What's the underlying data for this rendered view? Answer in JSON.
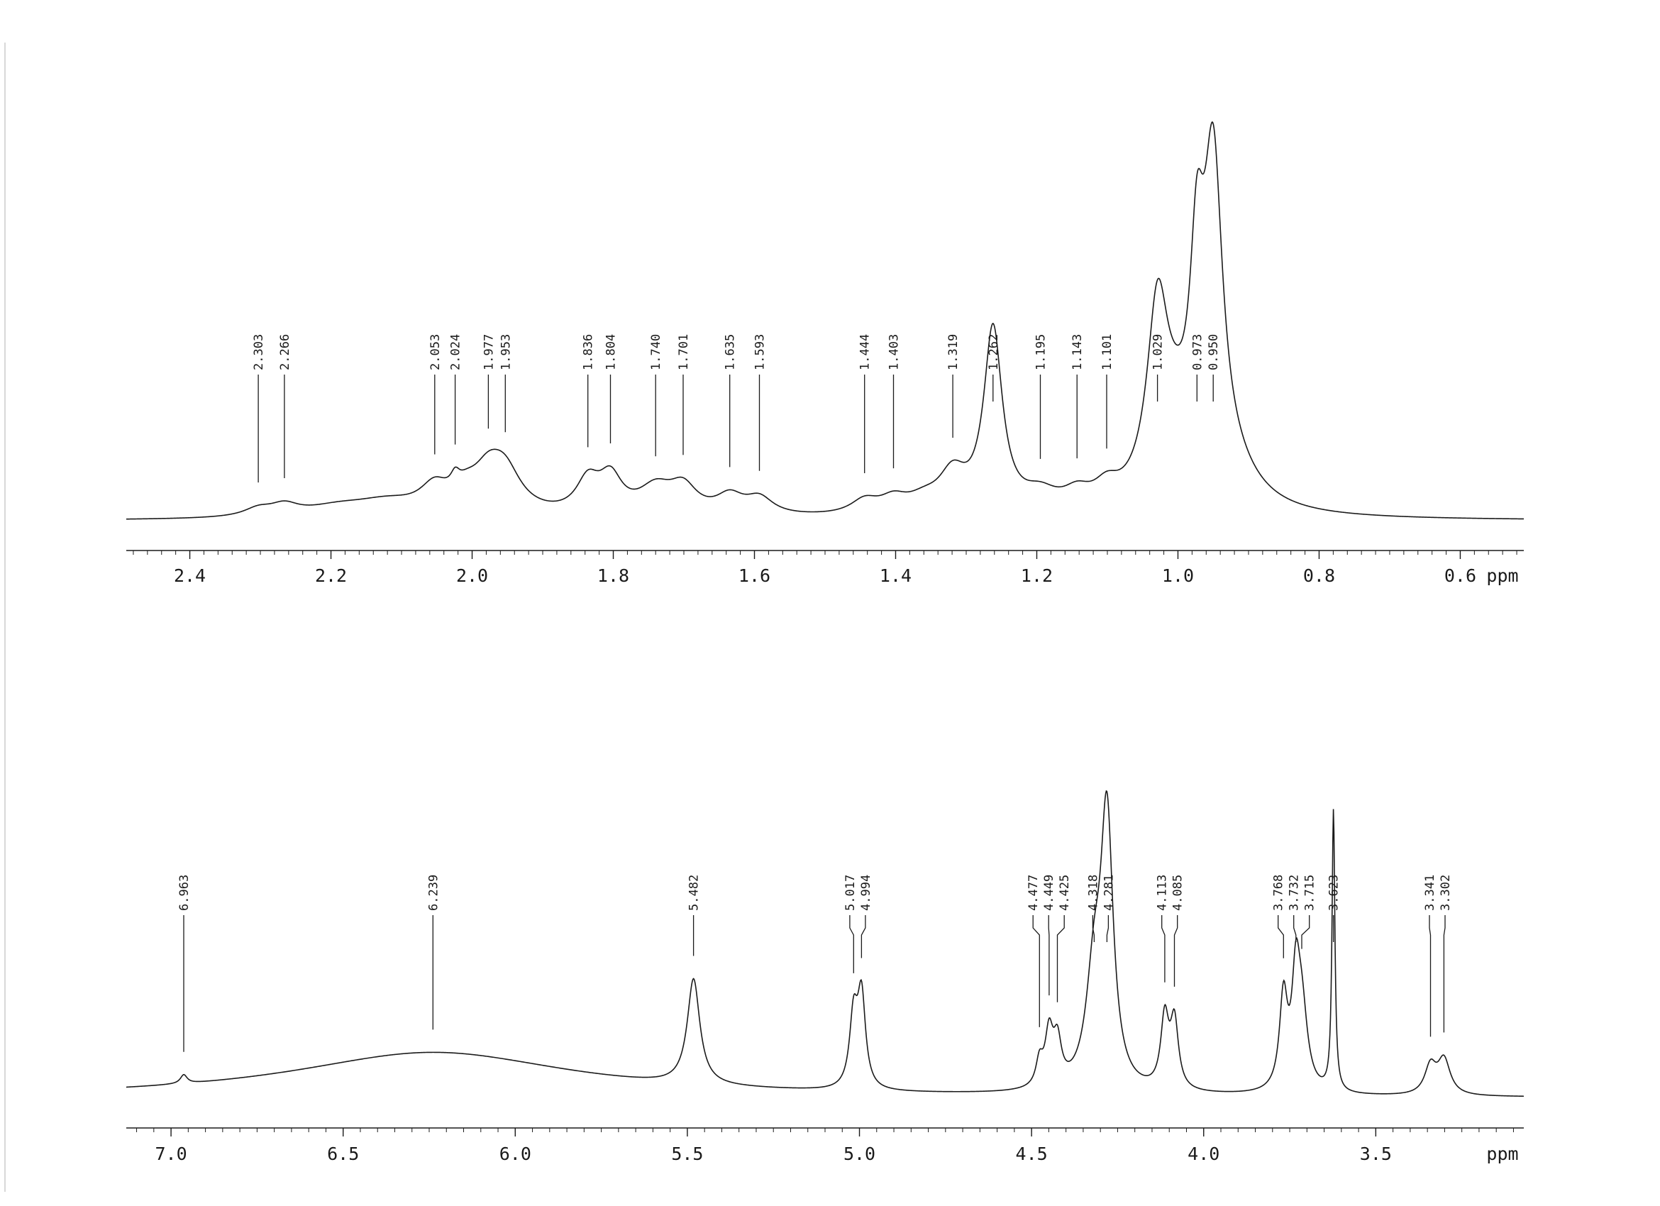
{
  "chart_data": [
    {
      "type": "line",
      "title": "",
      "xlabel": "ppm",
      "ylabel": "",
      "xlim": [
        2.49,
        0.51
      ],
      "x_direction": "decreasing",
      "grid": false,
      "legend": "none",
      "tick_labels": [
        "2.4",
        "2.2",
        "2.0",
        "1.8",
        "1.6",
        "1.4",
        "1.2",
        "1.0",
        "0.8",
        "0.6"
      ],
      "tick_values": [
        2.4,
        2.2,
        2.0,
        1.8,
        1.6,
        1.4,
        1.2,
        1.0,
        0.8,
        0.6
      ],
      "minor_tick_step": 0.02,
      "baseline_intensity": 0.0,
      "peak_labels": [
        "2.303",
        "2.266",
        "2.053",
        "2.024",
        "1.977",
        "1.953",
        "1.836",
        "1.804",
        "1.740",
        "1.701",
        "1.635",
        "1.593",
        "1.444",
        "1.403",
        "1.319",
        "1.262",
        "1.195",
        "1.143",
        "1.101",
        "1.029",
        "0.973",
        "0.950"
      ],
      "peak_positions": [
        2.303,
        2.266,
        2.053,
        2.024,
        1.977,
        1.953,
        1.836,
        1.804,
        1.74,
        1.701,
        1.635,
        1.593,
        1.444,
        1.403,
        1.319,
        1.262,
        1.195,
        1.143,
        1.101,
        1.029,
        0.973,
        0.95
      ],
      "peaks": [
        {
          "x": 2.303,
          "height": 0.025,
          "width": 0.025
        },
        {
          "x": 2.266,
          "height": 0.034,
          "width": 0.025
        },
        {
          "x": 2.19,
          "height": 0.03,
          "width": 0.06
        },
        {
          "x": 2.12,
          "height": 0.045,
          "width": 0.06
        },
        {
          "x": 2.053,
          "height": 0.08,
          "width": 0.025
        },
        {
          "x": 2.024,
          "height": 0.045,
          "width": 0.008
        },
        {
          "x": 2.008,
          "height": 0.045,
          "width": 0.02
        },
        {
          "x": 1.977,
          "height": 0.12,
          "width": 0.028
        },
        {
          "x": 1.953,
          "height": 0.12,
          "width": 0.028
        },
        {
          "x": 1.836,
          "height": 0.105,
          "width": 0.02
        },
        {
          "x": 1.804,
          "height": 0.115,
          "width": 0.02
        },
        {
          "x": 1.74,
          "height": 0.085,
          "width": 0.03
        },
        {
          "x": 1.701,
          "height": 0.085,
          "width": 0.024
        },
        {
          "x": 1.635,
          "height": 0.06,
          "width": 0.024
        },
        {
          "x": 1.593,
          "height": 0.055,
          "width": 0.024
        },
        {
          "x": 1.444,
          "height": 0.045,
          "width": 0.024
        },
        {
          "x": 1.403,
          "height": 0.045,
          "width": 0.024
        },
        {
          "x": 1.36,
          "height": 0.04,
          "width": 0.03
        },
        {
          "x": 1.319,
          "height": 0.12,
          "width": 0.024
        },
        {
          "x": 1.262,
          "height": 0.6,
          "width": 0.016
        },
        {
          "x": 1.195,
          "height": 0.055,
          "width": 0.03
        },
        {
          "x": 1.143,
          "height": 0.05,
          "width": 0.024
        },
        {
          "x": 1.101,
          "height": 0.06,
          "width": 0.022
        },
        {
          "x": 1.029,
          "height": 0.58,
          "width": 0.018
        },
        {
          "x": 1.005,
          "height": 0.18,
          "width": 0.03
        },
        {
          "x": 0.973,
          "height": 0.6,
          "width": 0.012
        },
        {
          "x": 0.95,
          "height": 1.0,
          "width": 0.016
        },
        {
          "x": 0.93,
          "height": 0.12,
          "width": 0.05
        }
      ]
    },
    {
      "type": "line",
      "title": "",
      "xlabel": "ppm",
      "ylabel": "",
      "xlim": [
        7.13,
        3.07
      ],
      "x_direction": "decreasing",
      "grid": false,
      "legend": "none",
      "tick_labels": [
        "7.0",
        "6.5",
        "6.0",
        "5.5",
        "5.0",
        "4.5",
        "4.0",
        "3.5"
      ],
      "tick_values": [
        7.0,
        6.5,
        6.0,
        5.5,
        5.0,
        4.5,
        4.0,
        3.5
      ],
      "minor_tick_step": 0.05,
      "baseline_intensity": 0.0,
      "peak_labels": [
        "6.963",
        "6.239",
        "5.482",
        "5.017",
        "4.994",
        "4.477",
        "4.449",
        "4.425",
        "4.318",
        "4.281",
        "4.113",
        "4.085",
        "3.768",
        "3.732",
        "3.715",
        "3.623",
        "3.341",
        "3.302"
      ],
      "peak_positions": [
        6.963,
        6.239,
        5.482,
        5.017,
        4.994,
        4.477,
        4.449,
        4.425,
        4.318,
        4.281,
        4.113,
        4.085,
        3.768,
        3.732,
        3.715,
        3.623,
        3.341,
        3.302
      ],
      "peaks": [
        {
          "x": 6.963,
          "height": 0.025,
          "width": 0.012
        },
        {
          "x": 6.239,
          "height": 0.13,
          "width": 0.5
        },
        {
          "x": 5.482,
          "height": 0.3,
          "width": 0.022
        },
        {
          "x": 5.017,
          "height": 0.2,
          "width": 0.014
        },
        {
          "x": 4.994,
          "height": 0.26,
          "width": 0.014
        },
        {
          "x": 4.477,
          "height": 0.07,
          "width": 0.012
        },
        {
          "x": 4.449,
          "height": 0.15,
          "width": 0.014
        },
        {
          "x": 4.425,
          "height": 0.12,
          "width": 0.014
        },
        {
          "x": 4.318,
          "height": 0.3,
          "width": 0.028
        },
        {
          "x": 4.281,
          "height": 0.75,
          "width": 0.022
        },
        {
          "x": 4.113,
          "height": 0.2,
          "width": 0.014
        },
        {
          "x": 4.085,
          "height": 0.19,
          "width": 0.014
        },
        {
          "x": 3.768,
          "height": 0.26,
          "width": 0.014
        },
        {
          "x": 3.732,
          "height": 0.28,
          "width": 0.014
        },
        {
          "x": 3.715,
          "height": 0.22,
          "width": 0.02
        },
        {
          "x": 3.623,
          "height": 0.8,
          "width": 0.005
        },
        {
          "x": 3.341,
          "height": 0.08,
          "width": 0.02
        },
        {
          "x": 3.302,
          "height": 0.1,
          "width": 0.022
        }
      ]
    }
  ]
}
